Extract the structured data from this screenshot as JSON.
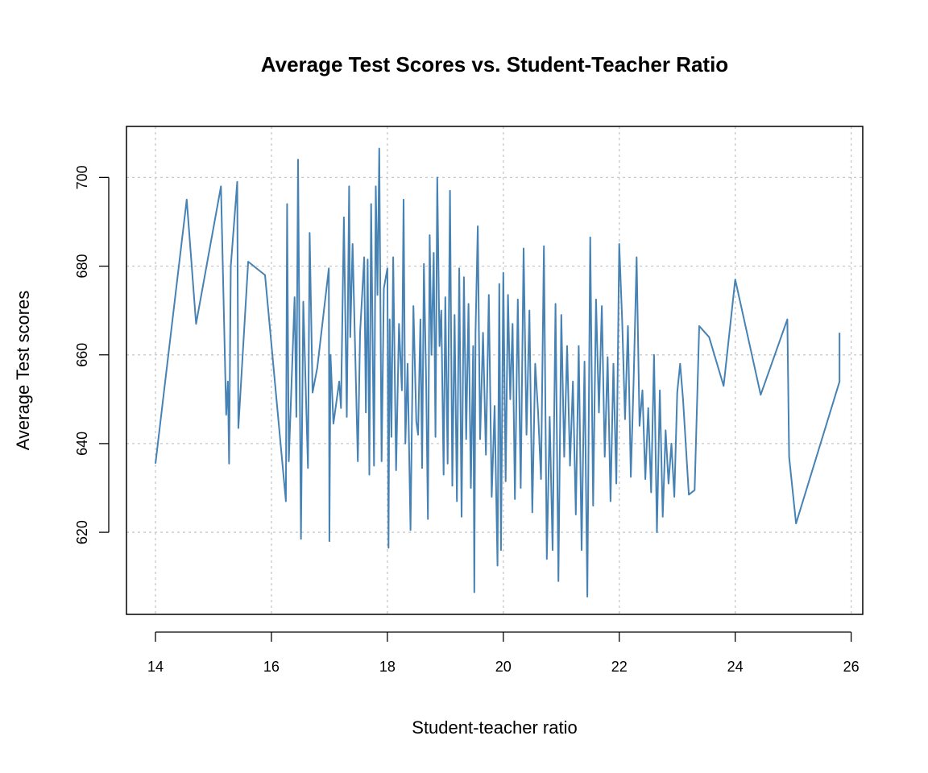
{
  "chart_data": {
    "type": "line",
    "title": "Average Test Scores vs. Student-Teacher Ratio",
    "xlabel": "Student-teacher ratio",
    "ylabel": "Average Test scores",
    "xlim": [
      13.5,
      26.2
    ],
    "ylim": [
      601.5,
      711.5
    ],
    "x_ticks": [
      14,
      16,
      18,
      20,
      22,
      24,
      26
    ],
    "y_ticks": [
      620,
      640,
      660,
      680,
      700
    ],
    "grid": true,
    "line_color": "#4682b4",
    "series": [
      {
        "x": [
          14.0,
          14.54,
          14.7,
          15.13,
          15.22,
          15.25,
          15.27,
          15.3,
          15.41,
          15.43,
          15.6,
          15.89,
          16.25,
          16.27,
          16.3,
          16.4,
          16.43,
          16.46,
          16.51,
          16.55,
          16.63,
          16.66,
          16.71,
          16.79,
          16.99,
          17.0,
          17.02,
          17.07,
          17.17,
          17.2,
          17.25,
          17.3,
          17.34,
          17.36,
          17.4,
          17.49,
          17.53,
          17.6,
          17.63,
          17.66,
          17.69,
          17.72,
          17.77,
          17.8,
          17.83,
          17.86,
          17.9,
          17.94,
          18.0,
          18.02,
          18.04,
          18.07,
          18.1,
          18.15,
          18.2,
          18.25,
          18.28,
          18.31,
          18.35,
          18.4,
          18.45,
          18.5,
          18.53,
          18.57,
          18.6,
          18.63,
          18.67,
          18.7,
          18.73,
          18.76,
          18.8,
          18.83,
          18.86,
          18.9,
          18.93,
          18.97,
          19.0,
          19.04,
          19.08,
          19.12,
          19.16,
          19.2,
          19.24,
          19.28,
          19.32,
          19.36,
          19.4,
          19.44,
          19.48,
          19.5,
          19.52,
          19.56,
          19.6,
          19.65,
          19.7,
          19.75,
          19.8,
          19.85,
          19.9,
          19.93,
          19.96,
          20.0,
          20.04,
          20.08,
          20.12,
          20.16,
          20.2,
          20.25,
          20.3,
          20.35,
          20.4,
          20.45,
          20.5,
          20.55,
          20.6,
          20.65,
          20.7,
          20.75,
          20.8,
          20.85,
          20.9,
          20.95,
          21.0,
          21.05,
          21.1,
          21.15,
          21.2,
          21.25,
          21.3,
          21.35,
          21.4,
          21.45,
          21.5,
          21.55,
          21.6,
          21.65,
          21.7,
          21.75,
          21.8,
          21.85,
          21.9,
          21.95,
          22.0,
          22.05,
          22.1,
          22.15,
          22.2,
          22.25,
          22.3,
          22.35,
          22.4,
          22.45,
          22.5,
          22.55,
          22.6,
          22.65,
          22.7,
          22.75,
          22.8,
          22.85,
          22.9,
          22.95,
          23.0,
          23.05,
          23.1,
          23.2,
          23.3,
          23.38,
          23.55,
          23.8,
          24.0,
          24.44,
          24.9,
          24.93,
          25.05,
          25.8,
          25.8
        ],
        "y": [
          635.5,
          695.0,
          667.0,
          698.0,
          646.5,
          654.0,
          635.5,
          680.0,
          699.0,
          643.5,
          681.0,
          678.0,
          627.0,
          694.0,
          636.0,
          673.0,
          646.0,
          704.0,
          618.5,
          672.0,
          634.5,
          687.5,
          651.5,
          657.0,
          679.5,
          618.0,
          660.0,
          644.5,
          654.0,
          648.0,
          691.0,
          646.0,
          698.0,
          664.0,
          685.0,
          636.0,
          665.0,
          682.0,
          647.0,
          681.5,
          633.0,
          694.0,
          635.0,
          698.0,
          673.5,
          706.5,
          636.0,
          675.0,
          679.5,
          616.5,
          668.0,
          641.5,
          682.0,
          634.0,
          667.0,
          652.0,
          695.0,
          640.0,
          658.0,
          620.5,
          671.0,
          645.0,
          642.0,
          668.0,
          634.5,
          680.5,
          653.0,
          623.0,
          687.0,
          660.0,
          683.0,
          641.5,
          700.0,
          662.0,
          670.0,
          633.0,
          673.0,
          635.5,
          697.0,
          630.5,
          669.0,
          627.0,
          679.5,
          623.5,
          677.5,
          641.0,
          671.5,
          630.0,
          662.0,
          606.5,
          665.0,
          689.0,
          641.0,
          665.0,
          637.5,
          673.5,
          628.0,
          648.5,
          612.5,
          676.0,
          616.0,
          678.5,
          631.5,
          673.5,
          650.0,
          667.0,
          627.5,
          672.5,
          630.0,
          684.0,
          642.0,
          670.0,
          624.5,
          658.0,
          647.0,
          632.0,
          684.5,
          614.0,
          646.0,
          616.0,
          671.5,
          609.0,
          669.0,
          637.0,
          662.0,
          635.0,
          654.0,
          624.0,
          662.0,
          616.0,
          658.5,
          605.5,
          686.5,
          626.0,
          672.5,
          647.0,
          671.0,
          637.0,
          659.5,
          627.0,
          658.0,
          631.0,
          685.0,
          668.0,
          645.5,
          666.5,
          632.5,
          655.0,
          682.0,
          644.0,
          652.0,
          632.0,
          648.0,
          629.0,
          660.0,
          620.0,
          652.0,
          623.5,
          643.0,
          631.0,
          640.0,
          628.0,
          651.5,
          658.0,
          650.0,
          628.5,
          629.5,
          666.5,
          664.0,
          653.0,
          677.0,
          651.0,
          668.0,
          637.0,
          622.0,
          654.0,
          665.0
        ]
      }
    ]
  }
}
